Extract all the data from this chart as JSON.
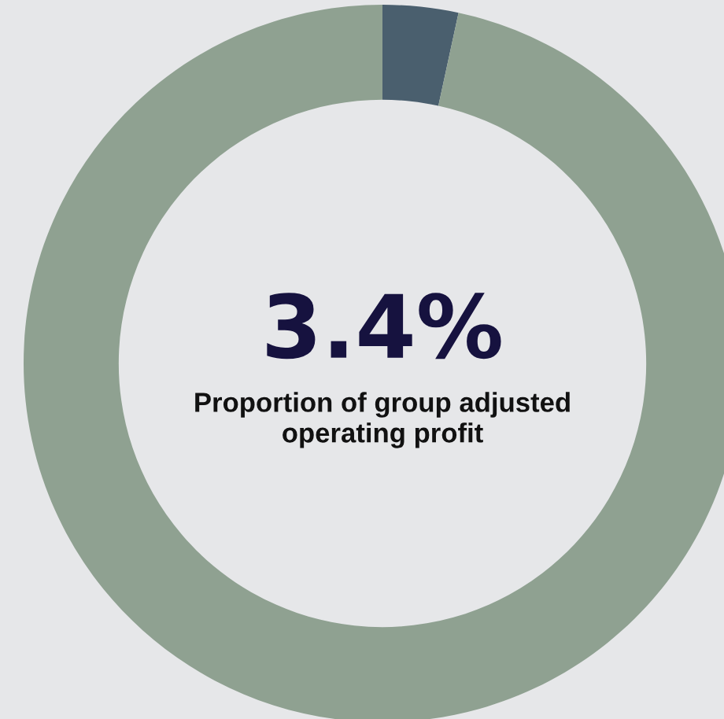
{
  "chart_data": {
    "type": "donut",
    "categories": [
      null,
      null
    ],
    "values": [
      3.4,
      96.6
    ],
    "colors": [
      "#4a5f6e",
      "#8fa191"
    ],
    "annotations": [
      "3.4%",
      "Proportion of group adjusted\noperating profit"
    ]
  }
}
